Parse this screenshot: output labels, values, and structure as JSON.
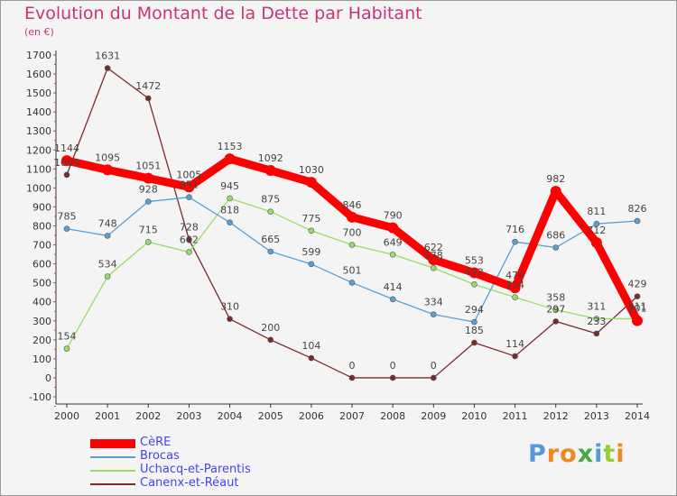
{
  "chart_data": {
    "type": "line",
    "title": "Evolution du Montant de la Dette par Habitant",
    "subtitle": "(en €)",
    "x": [
      "2000",
      "2001",
      "2002",
      "2003",
      "2004",
      "2005",
      "2006",
      "2007",
      "2008",
      "2009",
      "2010",
      "2011",
      "2012",
      "2013",
      "2014"
    ],
    "ylim": [
      -100,
      1700
    ],
    "yticks": [
      "-100",
      "0",
      "100",
      "200",
      "300",
      "400",
      "500",
      "600",
      "700",
      "800",
      "900",
      "1000",
      "1100",
      "1200",
      "1300",
      "1400",
      "1500",
      "1600",
      "1700"
    ],
    "grid": false,
    "legend_position": "bottom-left",
    "series": [
      {
        "name": "CèRE",
        "color": "#ff0000",
        "values": [
          1144,
          1095,
          1051,
          1005,
          1153,
          1092,
          1030,
          846,
          790,
          622,
          553,
          474,
          982,
          712,
          301
        ],
        "labels": [
          "1144",
          "1095",
          "1051",
          "1005",
          "1153",
          "1092",
          "1030",
          "846",
          "790",
          "622",
          "553",
          "474",
          "982",
          "712",
          "301"
        ]
      },
      {
        "name": "Brocas",
        "color": "#5a9fd4",
        "values": [
          785,
          748,
          928,
          951,
          818,
          665,
          599,
          501,
          414,
          334,
          294,
          716,
          686,
          811,
          826
        ],
        "labels": [
          "785",
          "748",
          "928",
          "951",
          "818",
          "665",
          "599",
          "501",
          "414",
          "334",
          "294",
          "716",
          "686",
          "811",
          "826"
        ]
      },
      {
        "name": "Uchacq-et-Parentis",
        "color": "#99dd66",
        "values": [
          154,
          534,
          715,
          662,
          945,
          875,
          775,
          700,
          649,
          578,
          492,
          424,
          358,
          311,
          311
        ],
        "labels": [
          "154",
          "534",
          "715",
          "662",
          "945",
          "875",
          "775",
          "700",
          "649",
          "578",
          "492",
          "424",
          "358",
          "311",
          "311"
        ]
      },
      {
        "name": "Canenx-et-Réaut",
        "color": "#7a2a2a",
        "values": [
          1069,
          1631,
          1472,
          728,
          310,
          200,
          104,
          0,
          0,
          0,
          185,
          114,
          297,
          233,
          429
        ],
        "labels": [
          "1069",
          "1631",
          "1472",
          "728",
          "310",
          "200",
          "104",
          "0",
          "0",
          "0",
          "185",
          "114",
          "297",
          "233",
          "429"
        ]
      }
    ]
  },
  "brand": {
    "letters": [
      "P",
      "r",
      "o",
      "x",
      "i",
      "t",
      "i"
    ],
    "colors": [
      "#5599dd",
      "#ee8822",
      "#ee8822",
      "#44aa44",
      "#5599dd",
      "#99cc33",
      "#ee8822"
    ]
  }
}
